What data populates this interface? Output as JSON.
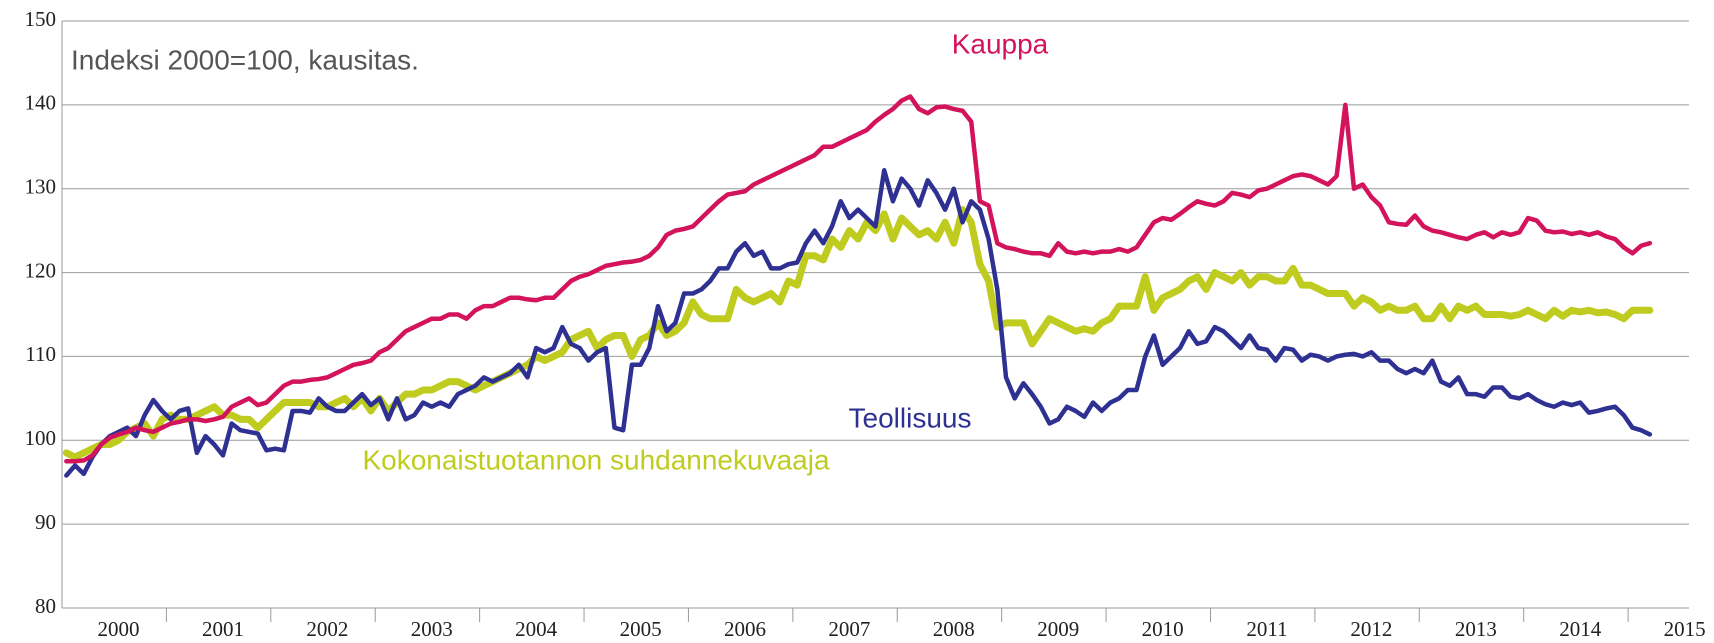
{
  "chart_data": {
    "type": "line",
    "subtitle": "Indeksi 2000=100, kausitas.",
    "categories": [
      null,
      null,
      null,
      null,
      null,
      null,
      "2000",
      null,
      null,
      null,
      null,
      null,
      null,
      null,
      null,
      null,
      null,
      null,
      "2001",
      null,
      null,
      null,
      null,
      null,
      null,
      null,
      null,
      null,
      null,
      null,
      "2002",
      null,
      null,
      null,
      null,
      null,
      null,
      null,
      null,
      null,
      null,
      null,
      "2003",
      null,
      null,
      null,
      null,
      null,
      null,
      null,
      null,
      null,
      null,
      null,
      "2004",
      null,
      null,
      null,
      null,
      null,
      null,
      null,
      null,
      null,
      null,
      null,
      "2005",
      null,
      null,
      null,
      null,
      null,
      null,
      null,
      null,
      null,
      null,
      null,
      "2006",
      null,
      null,
      null,
      null,
      null,
      null,
      null,
      null,
      null,
      null,
      null,
      "2007",
      null,
      null,
      null,
      null,
      null,
      null,
      null,
      null,
      null,
      null,
      null,
      "2008",
      null,
      null,
      null,
      null,
      null,
      null,
      null,
      null,
      null,
      null,
      null,
      "2009",
      null,
      null,
      null,
      null,
      null,
      null,
      null,
      null,
      null,
      null,
      null,
      "2010",
      null,
      null,
      null,
      null,
      null,
      null,
      null,
      null,
      null,
      null,
      null,
      "2011",
      null,
      null,
      null,
      null,
      null,
      null,
      null,
      null,
      null,
      null,
      null,
      "2012",
      null,
      null,
      null,
      null,
      null,
      null,
      null,
      null,
      null,
      null,
      null,
      "2013",
      null,
      null,
      null,
      null,
      null,
      null,
      null,
      null,
      null,
      null,
      null,
      "2014",
      null,
      null,
      null,
      null,
      null,
      null,
      null,
      null,
      null,
      null,
      null,
      "2015"
    ],
    "series": [
      {
        "name": "Kauppa",
        "color": "#d3135b",
        "values": [
          97.5,
          97.5,
          97.6,
          98.2,
          99.5,
          100.3,
          100.7,
          101,
          101.5,
          101.2,
          101,
          101.5,
          102,
          102.2,
          102.5,
          102.5,
          102.3,
          102.5,
          102.8,
          104,
          104.5,
          105,
          104.2,
          104.5,
          105.5,
          106.5,
          107,
          107,
          107.2,
          107.3,
          107.5,
          108,
          108.5,
          109,
          109.2,
          109.5,
          110.5,
          111,
          112,
          113,
          113.5,
          114,
          114.5,
          114.5,
          115,
          115,
          114.5,
          115.5,
          116,
          116,
          116.5,
          117,
          117,
          116.8,
          116.7,
          117,
          117,
          118,
          119,
          119.5,
          119.8,
          120.3,
          120.8,
          121,
          121.2,
          121.3,
          121.5,
          122,
          123,
          124.5,
          125,
          125.2,
          125.5,
          126.5,
          127.5,
          128.5,
          129.3,
          129.5,
          129.7,
          130.5,
          131,
          131.5,
          132,
          132.5,
          133,
          133.5,
          134,
          135,
          135,
          135.5,
          136,
          136.5,
          137,
          138,
          138.8,
          139.5,
          140.5,
          141,
          139.5,
          139,
          139.7,
          139.8,
          139.5,
          139.3,
          138,
          128.5,
          128,
          123.5,
          123,
          122.8,
          122.5,
          122.3,
          122.3,
          122,
          123.5,
          122.5,
          122.3,
          122.5,
          122.3,
          122.5,
          122.5,
          122.8,
          122.5,
          123,
          124.5,
          126,
          126.5,
          126.3,
          127,
          127.8,
          128.5,
          128.2,
          128,
          128.5,
          129.5,
          129.3,
          129,
          129.8,
          130,
          130.5,
          131,
          131.5,
          131.7,
          131.5,
          131,
          130.5,
          131.5,
          140,
          130,
          130.5,
          129,
          128,
          126,
          125.8,
          125.7,
          126.8,
          125.5,
          125,
          124.8,
          124.5,
          124.2,
          124,
          124.5,
          124.8,
          124.2,
          124.8,
          124.5,
          124.8,
          126.5,
          126.2,
          125,
          124.8,
          124.9,
          124.6,
          124.8,
          124.5,
          124.8,
          124.3,
          124,
          123,
          122.3,
          123.2,
          123.5,
          null,
          null,
          null,
          null
        ]
      },
      {
        "name": "Teollisuus",
        "color": "#2e3192",
        "values": [
          95.8,
          97,
          96,
          98,
          99.5,
          100.5,
          101,
          101.5,
          100.5,
          103,
          104.8,
          103.5,
          102.5,
          103.5,
          103.8,
          98.5,
          100.5,
          99.5,
          98.2,
          102,
          101.2,
          101,
          100.8,
          98.8,
          99,
          98.8,
          103.5,
          103.5,
          103.3,
          105,
          104,
          103.5,
          103.5,
          104.5,
          105.5,
          104.2,
          105,
          102.5,
          105,
          102.5,
          103,
          104.5,
          104,
          104.5,
          104,
          105.5,
          106,
          106.5,
          107.5,
          107,
          107.5,
          108,
          109,
          107.5,
          111,
          110.5,
          111,
          113.5,
          111.5,
          111,
          109.5,
          110.5,
          111,
          101.5,
          101.2,
          109,
          109,
          111,
          116,
          113,
          114,
          117.5,
          117.5,
          118,
          119,
          120.5,
          120.5,
          122.5,
          123.5,
          122,
          122.5,
          120.5,
          120.5,
          121,
          121.2,
          123.5,
          125,
          123.5,
          125.5,
          128.5,
          126.5,
          127.5,
          126.5,
          125.5,
          132.2,
          128.5,
          131.2,
          130,
          128,
          131,
          129.5,
          127.5,
          130,
          126,
          128.5,
          127.5,
          124,
          118,
          107.5,
          105,
          106.8,
          105.5,
          104,
          102,
          102.5,
          104,
          103.5,
          102.8,
          104.5,
          103.5,
          104.5,
          105,
          106,
          106,
          110,
          112.5,
          109,
          110,
          111,
          113,
          111.5,
          111.8,
          113.5,
          113,
          112,
          111,
          112.5,
          111,
          110.8,
          109.5,
          111,
          110.8,
          109.5,
          110.2,
          110,
          109.5,
          110,
          110.2,
          110.3,
          110,
          110.5,
          109.5,
          109.5,
          108.5,
          108,
          108.5,
          108,
          109.5,
          107,
          106.5,
          107.5,
          105.5,
          105.5,
          105.2,
          106.3,
          106.3,
          105.2,
          105,
          105.5,
          104.8,
          104.3,
          104,
          104.5,
          104.2,
          104.5,
          103.3,
          103.5,
          103.8,
          104,
          103,
          101.5,
          101.2,
          100.7,
          null,
          null,
          null,
          null
        ]
      },
      {
        "name": "Kokonaistuotannon suhdannekuvaaja",
        "color": "#bfcc1f",
        "values": [
          98.5,
          98,
          98.5,
          99,
          99.5,
          99.5,
          100,
          101,
          101.5,
          102,
          100.5,
          102.5,
          103,
          102.5,
          102.5,
          103,
          103.5,
          104,
          103,
          103,
          102.5,
          102.5,
          101.5,
          102.5,
          103.5,
          104.5,
          104.5,
          104.5,
          104.5,
          104,
          104,
          104.5,
          105,
          104,
          105,
          103.5,
          105,
          103.5,
          104.5,
          105.5,
          105.5,
          106,
          106,
          106.5,
          107,
          107,
          106.5,
          106,
          106.5,
          107,
          107.5,
          108,
          108.5,
          109,
          110,
          109.5,
          110,
          110.5,
          112,
          112.5,
          113,
          111,
          112,
          112.5,
          112.5,
          110,
          112,
          112.5,
          114,
          112.5,
          113,
          114,
          116.5,
          115,
          114.5,
          114.5,
          114.5,
          118,
          117,
          116.5,
          117,
          117.5,
          116.5,
          119,
          118.5,
          122,
          122,
          121.5,
          124,
          123,
          125,
          124,
          126,
          125,
          127,
          124,
          126.5,
          125.5,
          124.5,
          125,
          124,
          126,
          123.5,
          127.5,
          126,
          121,
          119,
          113.5,
          114,
          114,
          114,
          111.5,
          113,
          114.5,
          114,
          113.5,
          113,
          113.3,
          113,
          114,
          114.5,
          116,
          116,
          116,
          119.5,
          115.5,
          117,
          117.5,
          118,
          119,
          119.5,
          118,
          120,
          119.5,
          119,
          120,
          118.5,
          119.5,
          119.5,
          119,
          119,
          120.5,
          118.5,
          118.5,
          118,
          117.5,
          117.5,
          117.5,
          116,
          117,
          116.5,
          115.5,
          116,
          115.5,
          115.5,
          116,
          114.5,
          114.5,
          116,
          114.5,
          116,
          115.5,
          116,
          115,
          115,
          115,
          114.8,
          115,
          115.5,
          115,
          114.5,
          115.5,
          114.8,
          115.5,
          115.3,
          115.5,
          115.2,
          115.3,
          115,
          114.5,
          115.5,
          115.5,
          115.5,
          null,
          null,
          null,
          null
        ]
      }
    ],
    "ylim": [
      80,
      150
    ],
    "yticks": [
      80,
      90,
      100,
      110,
      120,
      130,
      140,
      150
    ],
    "grid": true
  }
}
